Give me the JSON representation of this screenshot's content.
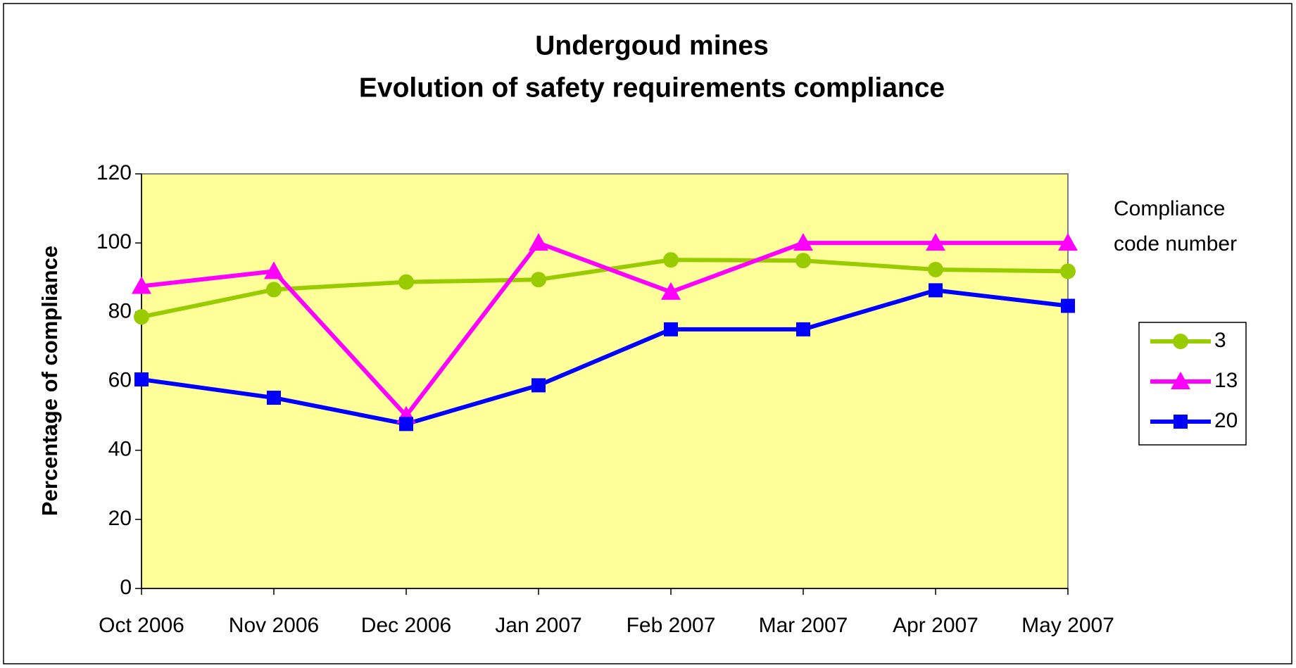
{
  "chart_data": {
    "type": "line",
    "title": "Undergoud mines",
    "subtitle": "Evolution of safety requirements compliance",
    "y_label": "Percentage of compliance",
    "legend_title": "Compliance code number",
    "legend_position": "right",
    "categories": [
      "Oct 2006",
      "Nov 2006",
      "Dec 2006",
      "Jan 2007",
      "Feb 2007",
      "Mar 2007",
      "Apr 2007",
      "May 2007"
    ],
    "series": [
      {
        "name": "3",
        "color": "#99CC00",
        "marker": "circle",
        "values": [
          78.6,
          86.5,
          88.7,
          89.4,
          95.1,
          94.9,
          92.3,
          91.8
        ]
      },
      {
        "name": "13",
        "color": "#FF00FF",
        "marker": "triangle",
        "values": [
          87.5,
          91.8,
          50,
          100,
          85.8,
          100,
          100,
          100
        ]
      },
      {
        "name": "20",
        "color": "#0000FF",
        "marker": "square",
        "values": [
          60.5,
          55.2,
          47.6,
          58.8,
          75,
          75,
          86.3,
          81.8
        ]
      }
    ],
    "ylim": [
      0,
      120
    ],
    "yticks": [
      0,
      20,
      40,
      60,
      80,
      100,
      120
    ],
    "plot_background": "#FFFF99",
    "grid": false
  }
}
